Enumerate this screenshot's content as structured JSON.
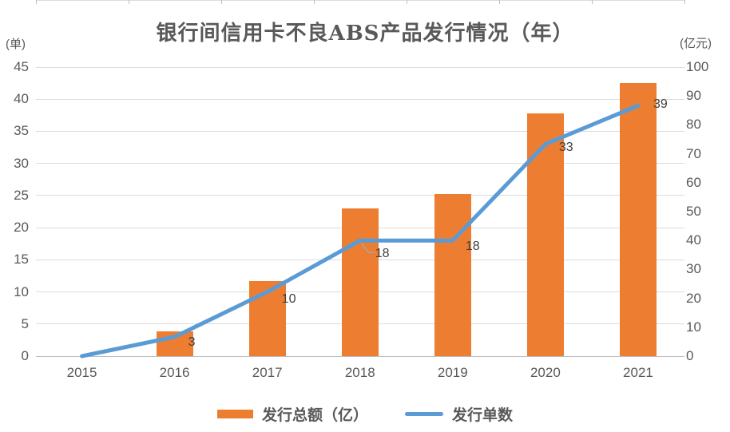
{
  "title": "银行间信用卡不良ABS产品发行情况（年）",
  "left_axis": {
    "unit": "(单)",
    "tick_labels": [
      "0",
      "5",
      "10",
      "15",
      "20",
      "25",
      "30",
      "35",
      "40",
      "45"
    ]
  },
  "right_axis": {
    "unit": "(亿元)",
    "tick_labels": [
      "0",
      "10",
      "20",
      "30",
      "40",
      "50",
      "60",
      "70",
      "80",
      "90",
      "100"
    ]
  },
  "x_axis": {
    "labels": [
      "2015",
      "2016",
      "2017",
      "2018",
      "2019",
      "2020",
      "2021"
    ]
  },
  "legend": {
    "items": [
      {
        "label": "发行总额（亿）",
        "swatch": "bar",
        "color": "#ED7D31"
      },
      {
        "label": "发行单数",
        "swatch": "line",
        "color": "#5B9BD5"
      }
    ]
  },
  "colors": {
    "bar": "#ED7D31",
    "line": "#5B9BD5",
    "gridline": "#DCDCDC",
    "axis_text": "#595959",
    "data_label": "#404040",
    "leader_line": "#A6A6A6"
  },
  "chart_data": {
    "type": "bar",
    "subtype": "combo-bar-line-dual-axis",
    "title": "银行间信用卡不良ABS产品发行情况（年）",
    "categories": [
      "2015",
      "2016",
      "2017",
      "2018",
      "2019",
      "2020",
      "2021"
    ],
    "series": [
      {
        "name": "发行总额（亿）",
        "type": "bar",
        "axis": "right",
        "color": "#ED7D31",
        "values": [
          0,
          8.6,
          26,
          51,
          56,
          84,
          94.5
        ]
      },
      {
        "name": "发行单数",
        "type": "line",
        "axis": "left",
        "color": "#5B9BD5",
        "values": [
          0,
          3,
          10,
          18,
          18,
          33,
          39
        ],
        "point_labels": [
          "",
          "3",
          "10",
          "18",
          "18",
          "33",
          "39"
        ]
      }
    ],
    "left_axis_title": "(单)",
    "left_ylim": [
      0,
      45
    ],
    "left_tick_step": 5,
    "right_axis_title": "(亿元)",
    "right_ylim": [
      0,
      100
    ],
    "right_tick_step": 10,
    "grid": "horizontal gridlines aligned to left axis",
    "legend_position": "bottom"
  }
}
